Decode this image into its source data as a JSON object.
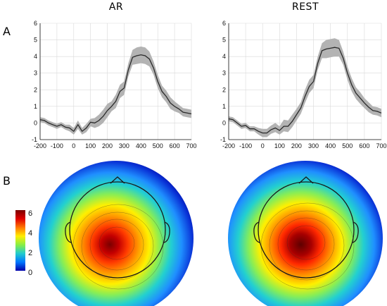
{
  "panels": {
    "a": "A",
    "b": "B"
  },
  "chart_data": [
    {
      "type": "line",
      "title": "AR",
      "xlabel": "",
      "ylabel": "",
      "xlim": [
        -200,
        700
      ],
      "ylim": [
        -1,
        6
      ],
      "xticks": [
        -200,
        -100,
        0,
        100,
        200,
        300,
        400,
        500,
        600,
        700
      ],
      "yticks": [
        -1,
        0,
        1,
        2,
        3,
        4,
        5,
        6
      ],
      "grid": true,
      "x": [
        -200,
        -175,
        -150,
        -125,
        -100,
        -75,
        -50,
        -25,
        0,
        25,
        50,
        75,
        100,
        125,
        150,
        175,
        200,
        225,
        250,
        275,
        300,
        325,
        350,
        375,
        400,
        425,
        450,
        475,
        500,
        525,
        550,
        575,
        600,
        625,
        650,
        675,
        700
      ],
      "series": [
        {
          "mean": [
            0.2,
            0.15,
            0.0,
            -0.1,
            -0.2,
            -0.1,
            -0.25,
            -0.3,
            -0.5,
            -0.1,
            -0.5,
            -0.3,
            0.05,
            0.0,
            0.15,
            0.4,
            0.75,
            1.0,
            1.3,
            1.9,
            2.1,
            3.2,
            3.95,
            4.05,
            4.1,
            4.05,
            3.85,
            3.3,
            2.5,
            1.9,
            1.6,
            1.2,
            1.0,
            0.85,
            0.65,
            0.6,
            0.55
          ],
          "upper": [
            0.35,
            0.3,
            0.15,
            0.05,
            -0.05,
            0.05,
            -0.1,
            -0.1,
            -0.3,
            0.15,
            -0.3,
            -0.05,
            0.25,
            0.3,
            0.5,
            0.8,
            1.15,
            1.3,
            1.7,
            2.3,
            2.5,
            3.6,
            4.4,
            4.55,
            4.6,
            4.55,
            4.3,
            3.7,
            2.9,
            2.25,
            1.95,
            1.55,
            1.3,
            1.1,
            0.9,
            0.85,
            0.8
          ],
          "lower": [
            0.05,
            0.0,
            -0.15,
            -0.25,
            -0.35,
            -0.25,
            -0.4,
            -0.5,
            -0.7,
            -0.35,
            -0.7,
            -0.55,
            -0.2,
            -0.3,
            -0.2,
            0.0,
            0.35,
            0.7,
            0.9,
            1.5,
            1.7,
            2.8,
            3.5,
            3.55,
            3.6,
            3.55,
            3.4,
            2.9,
            2.1,
            1.55,
            1.25,
            0.85,
            0.7,
            0.6,
            0.4,
            0.35,
            0.3
          ]
        }
      ]
    },
    {
      "type": "line",
      "title": "REST",
      "xlabel": "",
      "ylabel": "",
      "xlim": [
        -200,
        700
      ],
      "ylim": [
        -1,
        6
      ],
      "xticks": [
        -200,
        -100,
        0,
        100,
        200,
        300,
        400,
        500,
        600,
        700
      ],
      "yticks": [
        -1,
        0,
        1,
        2,
        3,
        4,
        5,
        6
      ],
      "grid": true,
      "x": [
        -200,
        -175,
        -150,
        -125,
        -100,
        -75,
        -50,
        -25,
        0,
        25,
        50,
        75,
        100,
        125,
        150,
        175,
        200,
        225,
        250,
        275,
        300,
        325,
        350,
        375,
        400,
        425,
        450,
        475,
        500,
        525,
        550,
        575,
        600,
        625,
        650,
        675,
        700
      ],
      "series": [
        {
          "mean": [
            0.25,
            0.2,
            0.0,
            -0.2,
            -0.15,
            -0.35,
            -0.35,
            -0.5,
            -0.6,
            -0.6,
            -0.4,
            -0.3,
            -0.45,
            -0.2,
            -0.2,
            0.1,
            0.5,
            0.9,
            1.6,
            2.2,
            2.5,
            3.6,
            4.35,
            4.45,
            4.5,
            4.55,
            4.5,
            3.9,
            3.0,
            2.3,
            1.8,
            1.5,
            1.2,
            0.95,
            0.75,
            0.7,
            0.6
          ],
          "upper": [
            0.4,
            0.35,
            0.15,
            -0.05,
            0.0,
            -0.2,
            -0.2,
            -0.3,
            -0.35,
            -0.35,
            -0.15,
            0.0,
            -0.2,
            0.2,
            0.15,
            0.5,
            0.85,
            1.25,
            2.0,
            2.6,
            2.9,
            4.0,
            4.8,
            5.0,
            5.05,
            5.1,
            5.0,
            4.3,
            3.4,
            2.7,
            2.15,
            1.85,
            1.5,
            1.25,
            1.0,
            0.95,
            0.85
          ],
          "lower": [
            0.1,
            0.05,
            -0.15,
            -0.35,
            -0.3,
            -0.5,
            -0.5,
            -0.7,
            -0.85,
            -0.85,
            -0.65,
            -0.55,
            -0.7,
            -0.5,
            -0.55,
            -0.25,
            0.15,
            0.55,
            1.2,
            1.8,
            2.1,
            3.2,
            3.9,
            3.9,
            3.95,
            4.0,
            4.0,
            3.5,
            2.6,
            1.9,
            1.45,
            1.15,
            0.9,
            0.65,
            0.5,
            0.45,
            0.35
          ]
        }
      ]
    }
  ],
  "topomaps": [
    {
      "label": "AR",
      "peak": 6.0
    },
    {
      "label": "REST",
      "peak": 6.0
    }
  ],
  "colorbar": {
    "ticks": [
      "6",
      "4",
      "2",
      "0"
    ],
    "colors": [
      "#7a0000",
      "#e00000",
      "#ff7700",
      "#ffee00",
      "#88ee44",
      "#22cccc",
      "#0077ff",
      "#0000aa"
    ]
  }
}
